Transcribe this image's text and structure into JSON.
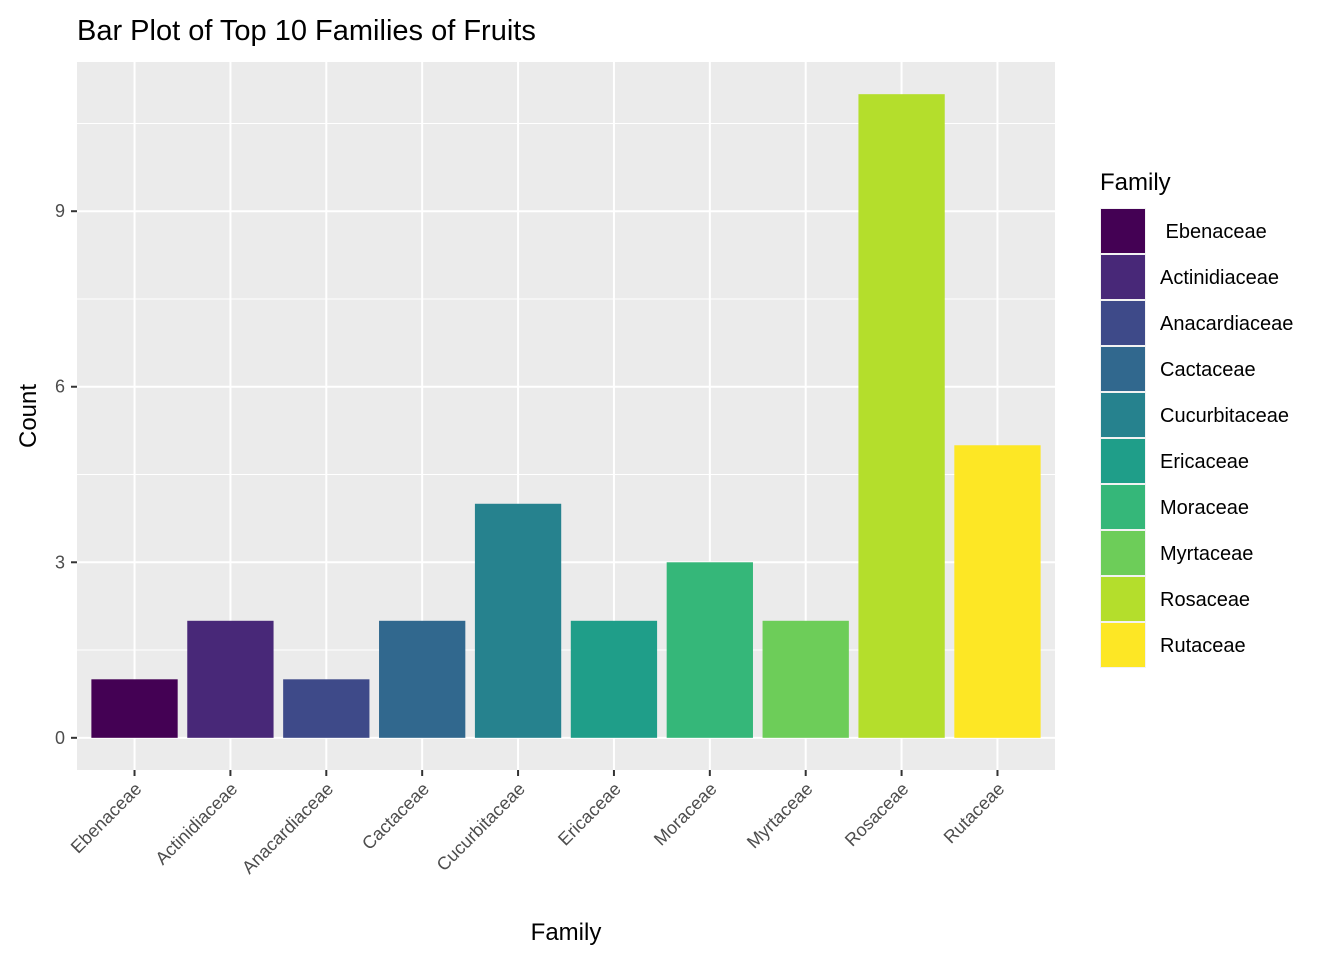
{
  "chart_data": {
    "type": "bar",
    "title": "Bar Plot of Top 10 Families of Fruits",
    "xlabel": "Family",
    "ylabel": "Count",
    "categories": [
      "Ebenaceae",
      "Actinidiaceae",
      "Anacardiaceae",
      "Cactaceae",
      "Cucurbitaceae",
      "Ericaceae",
      "Moraceae",
      "Myrtaceae",
      "Rosaceae",
      "Rutaceae"
    ],
    "values": [
      1,
      2,
      1,
      2,
      4,
      2,
      3,
      2,
      11,
      5
    ],
    "colors": [
      "#440154",
      "#482878",
      "#3E4A89",
      "#31688E",
      "#26828E",
      "#1F9E89",
      "#35B779",
      "#6DCD59",
      "#B4DE2C",
      "#FDE725"
    ],
    "ylim": [
      -0.55,
      11.55
    ],
    "yticks": [
      0,
      3,
      6,
      9
    ],
    "grid": true,
    "legend": {
      "title": "Family",
      "position": "right",
      "labels": [
        " Ebenaceae",
        "Actinidiaceae",
        "Anacardiaceae",
        "Cactaceae",
        "Cucurbitaceae",
        "Ericaceae",
        "Moraceae",
        "Myrtaceae",
        "Rosaceae",
        "Rutaceae"
      ]
    }
  }
}
